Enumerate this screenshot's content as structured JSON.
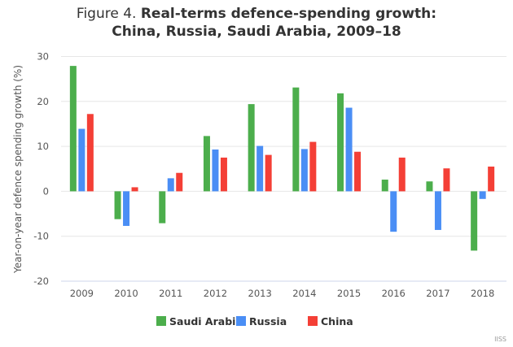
{
  "chart_data": {
    "type": "bar",
    "title_prefix": "Figure 4.",
    "title_line1": "Real-terms defence-spending growth:",
    "title_line2": "China, Russia, Saudi Arabia, 2009–18",
    "xlabel": "",
    "ylabel": "Year-on-year defence spending growth (%)",
    "ylim": [
      -20,
      30
    ],
    "yticks": [
      30,
      20,
      10,
      0,
      -10,
      -20
    ],
    "grid": true,
    "legend_position": "bottom",
    "categories": [
      "2009",
      "2010",
      "2011",
      "2012",
      "2013",
      "2014",
      "2015",
      "2016",
      "2017",
      "2018"
    ],
    "series": [
      {
        "name": "Saudi Arabia",
        "color": "#4cae4c",
        "values": [
          27.9,
          -6.2,
          -7.1,
          12.3,
          19.4,
          23.1,
          21.8,
          2.6,
          2.2,
          -13.2
        ]
      },
      {
        "name": "Russia",
        "color": "#4a8ef5",
        "values": [
          13.9,
          -7.7,
          2.9,
          9.3,
          10.1,
          9.4,
          18.6,
          -9.0,
          -8.6,
          -1.7
        ]
      },
      {
        "name": "China",
        "color": "#f43f36",
        "values": [
          17.2,
          0.9,
          4.1,
          7.5,
          8.1,
          11.0,
          8.8,
          7.5,
          5.1,
          5.5
        ]
      }
    ],
    "credit": "IISS"
  }
}
